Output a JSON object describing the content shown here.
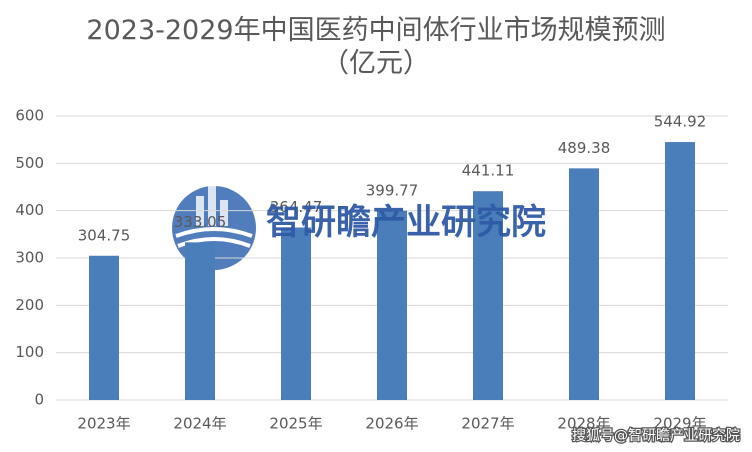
{
  "chart_data": {
    "type": "bar",
    "title": "2023-2029年中国医药中间体行业市场规模预测（亿元）",
    "categories": [
      "2023年",
      "2024年",
      "2025年",
      "2026年",
      "2027年",
      "2028年",
      "2029年"
    ],
    "values": [
      304.75,
      333.05,
      364.47,
      399.77,
      441.11,
      489.38,
      544.92
    ],
    "color": "#4a7ebb",
    "ylim": [
      0,
      600
    ],
    "yticks": [
      0,
      100,
      200,
      300,
      400,
      500,
      600
    ],
    "grid": true,
    "watermark": "智研瞻产业研究院",
    "source": "搜狐号@智研瞻产业研究院"
  }
}
